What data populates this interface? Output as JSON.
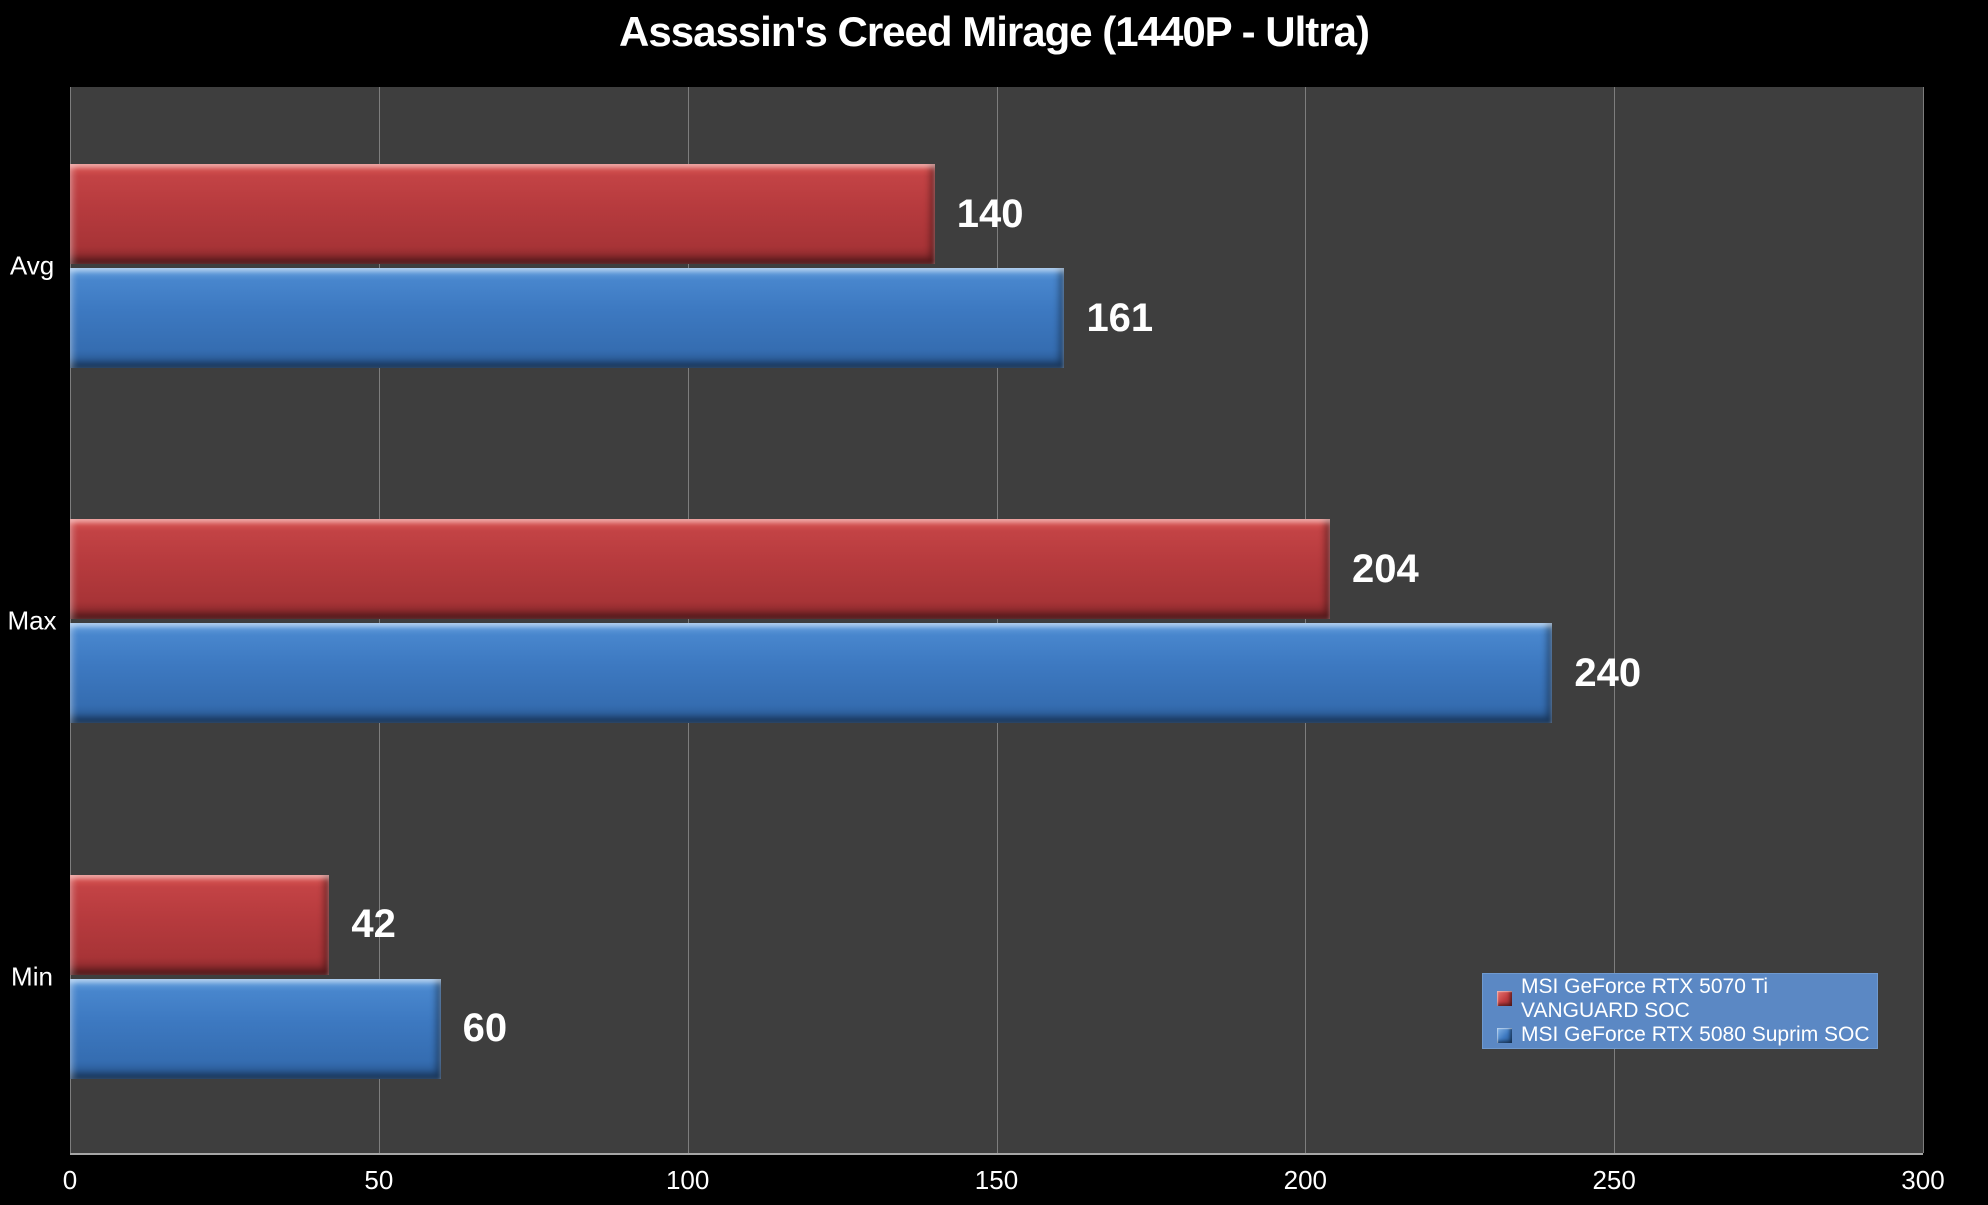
{
  "chart_data": {
    "type": "bar",
    "orientation": "horizontal",
    "title": "Assassin's Creed Mirage (1440P - Ultra)",
    "categories": [
      "Avg",
      "Max",
      "Min"
    ],
    "series": [
      {
        "name": "MSI GeForce RTX 5070 Ti VANGUARD SOC",
        "color": "#bc3c3e",
        "values": [
          140,
          204,
          42
        ]
      },
      {
        "name": "MSI GeForce RTX 5080 Suprim SOC",
        "color": "#3d79c1",
        "values": [
          161,
          240,
          60
        ]
      }
    ],
    "xlabel": "",
    "ylabel": "",
    "xlim": [
      0,
      300
    ],
    "xticks": [
      0,
      50,
      100,
      150,
      200,
      250,
      300
    ],
    "grid": true,
    "legend_position": "bottom-right",
    "colors": {
      "background": "#000000",
      "plot_background": "#3e3e3e",
      "gridline": "#7d7d7d",
      "axis_line": "#a6a6a6",
      "text": "#ffffff",
      "legend_background": "#5b88c4"
    }
  }
}
